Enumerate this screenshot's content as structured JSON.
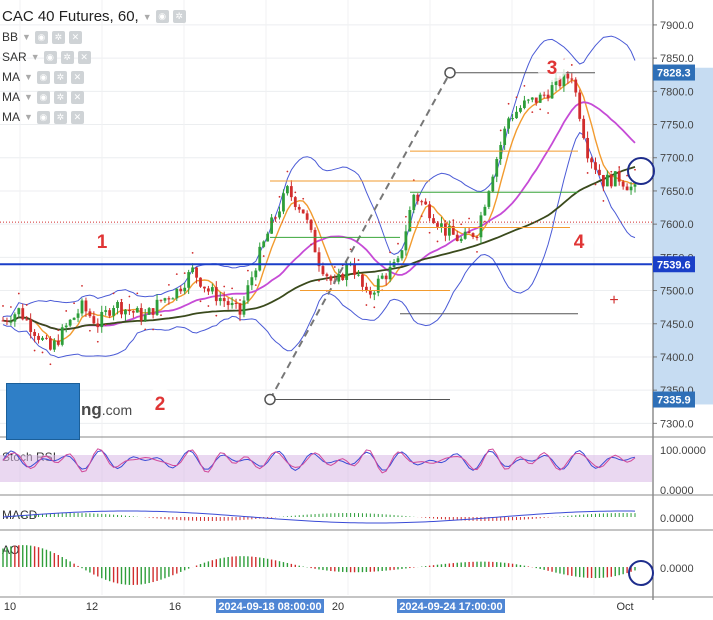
{
  "window": {
    "title": "CAC 40 Futures, 60,"
  },
  "indicators": [
    {
      "label": "BB"
    },
    {
      "label": "SAR"
    },
    {
      "label": "MA"
    },
    {
      "label": "MA"
    },
    {
      "label": "MA"
    }
  ],
  "sub_panels": [
    {
      "label": "Stoch RSI",
      "ticks": [
        "100.0000",
        "0.0000"
      ]
    },
    {
      "label": "MACD",
      "ticks": [
        "0.0000"
      ]
    },
    {
      "label": "AO",
      "ticks": [
        "0.0000"
      ]
    }
  ],
  "watermark": {
    "text": "ng",
    "suffix": ".com"
  },
  "annotations": [
    "1",
    "2",
    "3",
    "4"
  ],
  "price_badges": [
    {
      "value": "7828.3",
      "color": "#2e6fb7"
    },
    {
      "value": "7539.6",
      "color": "#1a3fc8"
    },
    {
      "value": "7335.9",
      "color": "#2e6fb7"
    }
  ],
  "colors": {
    "bull": "#2e9e3a",
    "bear": "#d12d2d",
    "bb": "#4b5bd6",
    "ma_fast": "#f29b2f",
    "ma_mid": "#c64bd6",
    "ma_slow": "#3a4a1c",
    "hline": "#1a3fc8",
    "stoch_band": "#d9b8e6"
  },
  "chart_data": {
    "type": "candlestick",
    "title": "CAC 40 Futures, 60,",
    "y_ticks": [
      7900,
      7850,
      7800,
      7750,
      7700,
      7650,
      7600,
      7550,
      7500,
      7450,
      7400,
      7350,
      7300
    ],
    "ylim": [
      7290,
      7930
    ],
    "x_tick_labels": [
      "10",
      "12",
      "16",
      "20",
      "Oct"
    ],
    "x_highlight_labels": [
      "2024-09-18 08:00:00",
      "2024-09-24 17:00:00"
    ],
    "horizontal_line": 7539.6,
    "price_path": [
      [
        0,
        7455
      ],
      [
        4,
        7470
      ],
      [
        8,
        7440
      ],
      [
        12,
        7410
      ],
      [
        16,
        7445
      ],
      [
        20,
        7475
      ],
      [
        24,
        7450
      ],
      [
        28,
        7480
      ],
      [
        32,
        7470
      ],
      [
        36,
        7460
      ],
      [
        40,
        7485
      ],
      [
        44,
        7500
      ],
      [
        48,
        7530
      ],
      [
        52,
        7500
      ],
      [
        56,
        7485
      ],
      [
        60,
        7465
      ],
      [
        64,
        7540
      ],
      [
        68,
        7600
      ],
      [
        72,
        7650
      ],
      [
        76,
        7620
      ],
      [
        80,
        7545
      ],
      [
        84,
        7505
      ],
      [
        88,
        7545
      ],
      [
        92,
        7490
      ],
      [
        96,
        7520
      ],
      [
        100,
        7540
      ],
      [
        104,
        7645
      ],
      [
        108,
        7620
      ],
      [
        112,
        7590
      ],
      [
        116,
        7575
      ],
      [
        120,
        7590
      ],
      [
        124,
        7680
      ],
      [
        128,
        7760
      ],
      [
        132,
        7780
      ],
      [
        136,
        7790
      ],
      [
        140,
        7810
      ],
      [
        144,
        7825
      ],
      [
        148,
        7710
      ],
      [
        152,
        7665
      ],
      [
        156,
        7670
      ],
      [
        160,
        7650
      ]
    ],
    "series": [
      {
        "name": "BB",
        "values": []
      },
      {
        "name": "SAR",
        "values": []
      },
      {
        "name": "MA",
        "values": []
      },
      {
        "name": "MA",
        "values": []
      },
      {
        "name": "MA",
        "values": []
      }
    ]
  }
}
